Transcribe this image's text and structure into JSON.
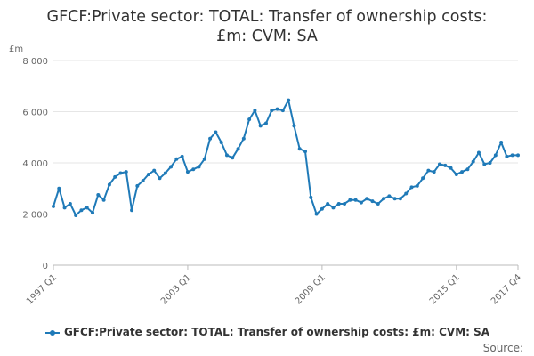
{
  "title_line1": "GFCF:Private sector: TOTAL: Transfer of ownership costs:",
  "title_line2": "£m: CVM: SA",
  "unit": "£m",
  "source": "Source:",
  "chart_data": {
    "type": "line",
    "title": "GFCF:Private sector: TOTAL: Transfer of ownership costs: £m: CVM: SA",
    "ylabel": "£m",
    "xlabel": "",
    "ylim": [
      0,
      8000
    ],
    "yticks": [
      0,
      2000,
      4000,
      6000,
      8000
    ],
    "ytick_labels": [
      "0",
      "2 000",
      "4 000",
      "6 000",
      "8 000"
    ],
    "xtick_labels": [
      "1997 Q1",
      "2003 Q1",
      "2009 Q1",
      "2015 Q1",
      "2017 Q4"
    ],
    "grid": true,
    "legend_position": "bottom",
    "color": "#1f7ab8",
    "series": [
      {
        "name": "GFCF:Private sector: TOTAL: Transfer of ownership costs: £m: CVM: SA",
        "x": [
          "1997 Q1",
          "1997 Q2",
          "1997 Q3",
          "1997 Q4",
          "1998 Q1",
          "1998 Q2",
          "1998 Q3",
          "1998 Q4",
          "1999 Q1",
          "1999 Q2",
          "1999 Q3",
          "1999 Q4",
          "2000 Q1",
          "2000 Q2",
          "2000 Q3",
          "2000 Q4",
          "2001 Q1",
          "2001 Q2",
          "2001 Q3",
          "2001 Q4",
          "2002 Q1",
          "2002 Q2",
          "2002 Q3",
          "2002 Q4",
          "2003 Q1",
          "2003 Q2",
          "2003 Q3",
          "2003 Q4",
          "2004 Q1",
          "2004 Q2",
          "2004 Q3",
          "2004 Q4",
          "2005 Q1",
          "2005 Q2",
          "2005 Q3",
          "2005 Q4",
          "2006 Q1",
          "2006 Q2",
          "2006 Q3",
          "2006 Q4",
          "2007 Q1",
          "2007 Q2",
          "2007 Q3",
          "2007 Q4",
          "2008 Q1",
          "2008 Q2",
          "2008 Q3",
          "2008 Q4",
          "2009 Q1",
          "2009 Q2",
          "2009 Q3",
          "2009 Q4",
          "2010 Q1",
          "2010 Q2",
          "2010 Q3",
          "2010 Q4",
          "2011 Q1",
          "2011 Q2",
          "2011 Q3",
          "2011 Q4",
          "2012 Q1",
          "2012 Q2",
          "2012 Q3",
          "2012 Q4",
          "2013 Q1",
          "2013 Q2",
          "2013 Q3",
          "2013 Q4",
          "2014 Q1",
          "2014 Q2",
          "2014 Q3",
          "2014 Q4",
          "2015 Q1",
          "2015 Q2",
          "2015 Q3",
          "2015 Q4",
          "2016 Q1",
          "2016 Q2",
          "2016 Q3",
          "2016 Q4",
          "2017 Q1",
          "2017 Q2",
          "2017 Q3",
          "2017 Q4"
        ],
        "values": [
          2300,
          3000,
          2250,
          2400,
          1950,
          2150,
          2250,
          2050,
          2750,
          2550,
          3150,
          3450,
          3600,
          3650,
          2150,
          3100,
          3300,
          3550,
          3700,
          3400,
          3600,
          3850,
          4150,
          4250,
          3650,
          3750,
          3850,
          4150,
          4950,
          5200,
          4800,
          4300,
          4200,
          4550,
          4950,
          5700,
          6050,
          5450,
          5550,
          6050,
          6100,
          6050,
          6450,
          5450,
          4550,
          4450,
          2650,
          2000,
          2200,
          2400,
          2250,
          2400,
          2400,
          2550,
          2550,
          2450,
          2600,
          2500,
          2400,
          2600,
          2700,
          2600,
          2600,
          2800,
          3050,
          3100,
          3400,
          3700,
          3650,
          3950,
          3900,
          3800,
          3550,
          3650,
          3750,
          4050,
          4400,
          3950,
          4000,
          4300,
          4800,
          4250,
          4300,
          4300
        ]
      }
    ]
  }
}
